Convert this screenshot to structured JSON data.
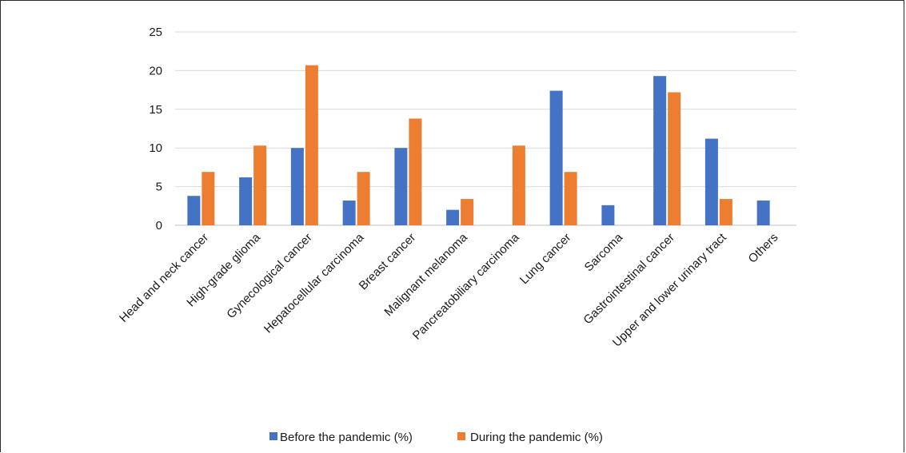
{
  "chart_data": {
    "type": "bar",
    "title": "",
    "xlabel": "",
    "ylabel": "",
    "ylim": [
      0,
      25
    ],
    "yticks": [
      0,
      5,
      10,
      15,
      20,
      25
    ],
    "grid": true,
    "legend_position": "bottom",
    "categories": [
      "Head and neck cancer",
      "High-grade glioma",
      "Gynecological cancer",
      "Hepatocellular carcinoma",
      "Breast cancer",
      "Malignant melanoma",
      "Pancreatobiliary carcinoma",
      "Lung cancer",
      "Sarcoma",
      "Gastrointestinal cancer",
      "Upper and lower urinary tract",
      "Others"
    ],
    "series": [
      {
        "name": "Before the pandemic (%)",
        "color": "#4472C4",
        "values": [
          3.8,
          6.2,
          10,
          3.2,
          10,
          2,
          0,
          17.4,
          2.6,
          19.3,
          11.2,
          3.2
        ]
      },
      {
        "name": "During the pandemic (%)",
        "color": "#ED7D31",
        "values": [
          6.9,
          10.3,
          20.7,
          6.9,
          13.8,
          3.4,
          10.3,
          6.9,
          0,
          17.2,
          3.4,
          0
        ]
      }
    ]
  }
}
